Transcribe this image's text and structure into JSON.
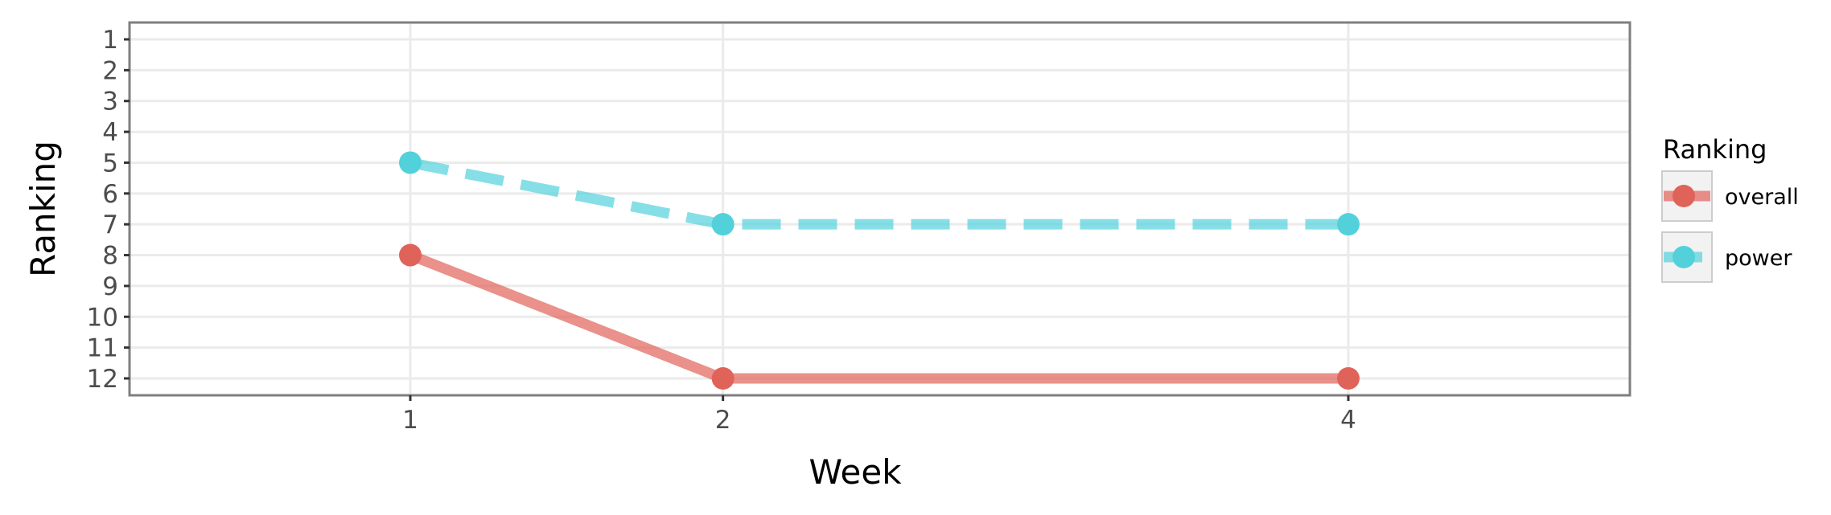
{
  "chart_data": {
    "type": "line",
    "xlabel": "Week",
    "ylabel": "Ranking",
    "x": [
      1,
      2,
      4
    ],
    "x_ticks": [
      "1",
      "2",
      "4"
    ],
    "y_ticks": [
      "1",
      "2",
      "3",
      "4",
      "5",
      "6",
      "7",
      "8",
      "9",
      "10",
      "11",
      "12"
    ],
    "ylim": [
      1,
      12
    ],
    "y_reversed": true,
    "grid": true,
    "legend": {
      "title": "Ranking",
      "placement": "right"
    },
    "series": [
      {
        "name": "overall",
        "values": [
          8,
          12,
          12
        ],
        "color": "#e06359",
        "linestyle": "solid"
      },
      {
        "name": "power",
        "values": [
          5,
          7,
          7
        ],
        "color": "#52d1db",
        "linestyle": "dashed"
      }
    ]
  }
}
